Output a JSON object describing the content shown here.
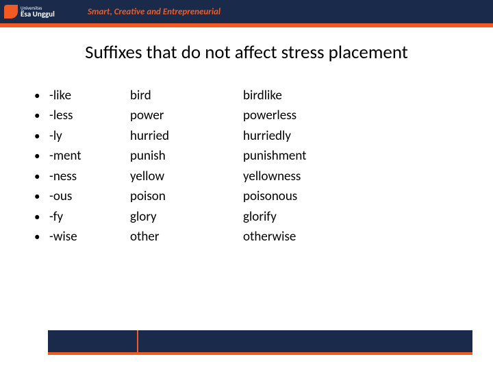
{
  "header": {
    "logo_small": "Universitas",
    "logo_main": "Ësa Unggul",
    "tagline": "Smart, Creative and Entrepreneurial"
  },
  "title": "Suffixes that do not affect stress placement",
  "rows": [
    {
      "suffix": "-like",
      "base": "bird",
      "derived": "birdlike"
    },
    {
      "suffix": "-less",
      "base": "power",
      "derived": "powerless"
    },
    {
      "suffix": "-ly",
      "base": "hurried",
      "derived": "hurriedly"
    },
    {
      "suffix": "-ment",
      "base": "punish",
      "derived": "punishment"
    },
    {
      "suffix": "-ness",
      "base": "yellow",
      "derived": "yellowness"
    },
    {
      "suffix": "-ous",
      "base": "poison",
      "derived": "poisonous"
    },
    {
      "suffix": "-fy",
      "base": "glory",
      "derived": "glorify"
    },
    {
      "suffix": "-wise",
      "base": "other",
      "derived": "otherwise"
    }
  ],
  "colors": {
    "header_bg": "#1a2a4a",
    "accent": "#f15a22",
    "text": "#000000",
    "background": "#ffffff"
  },
  "typography": {
    "title_fontsize": 27,
    "body_fontsize": 19,
    "tagline_fontsize": 13
  }
}
